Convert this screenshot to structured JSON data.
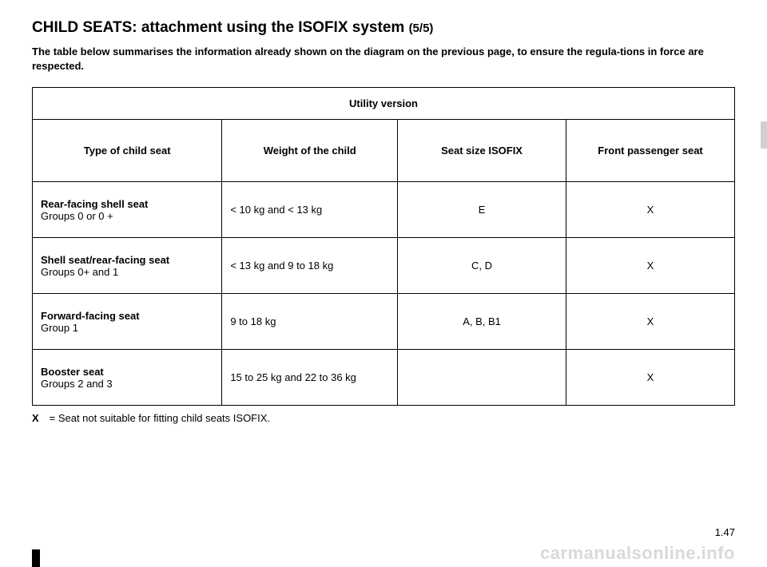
{
  "title_main": "CHILD SEATS: attachment using the ISOFIX system",
  "title_suffix": "(5/5)",
  "subtitle": "The table below summarises the information already shown on the diagram on the previous page, to ensure the regula-tions in force are respected.",
  "table": {
    "utility_header": "Utility version",
    "columns": [
      "Type of child seat",
      "Weight of the child",
      "Seat size ISOFIX",
      "Front passenger seat"
    ],
    "rows": [
      {
        "seat_name": "Rear-facing shell seat",
        "groups": "Groups 0 or 0 +",
        "weight": "< 10 kg and < 13 kg",
        "size": "E",
        "front": "X"
      },
      {
        "seat_name": "Shell seat/rear-facing seat",
        "groups": "Groups 0+ and 1",
        "weight": "< 13 kg and 9 to 18 kg",
        "size": "C, D",
        "front": "X"
      },
      {
        "seat_name": "Forward-facing seat",
        "groups": "Group 1",
        "weight": "9 to 18 kg",
        "size": "A, B, B1",
        "front": "X"
      },
      {
        "seat_name": "Booster seat",
        "groups": "Groups 2 and 3",
        "weight": "15 to 25 kg and 22 to 36 kg",
        "size": "",
        "front": "X"
      }
    ]
  },
  "legend_key": "X",
  "legend_text": "= Seat not suitable for fitting child seats ISOFIX.",
  "page_number": "1.47",
  "watermark": "carmanualsonline.info"
}
